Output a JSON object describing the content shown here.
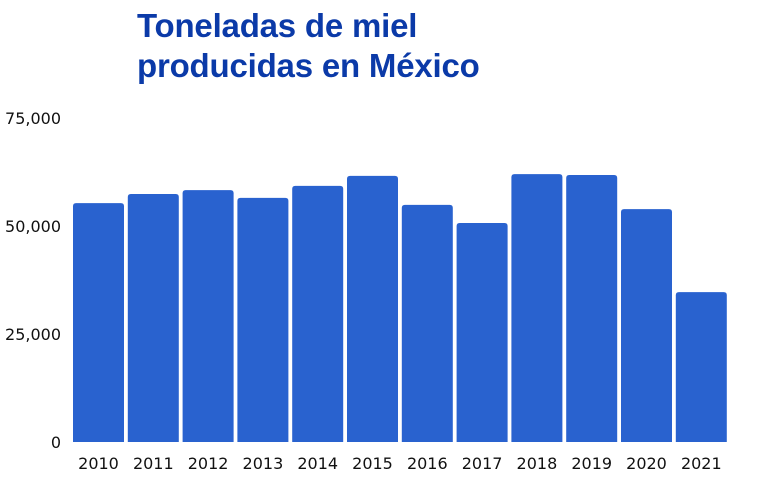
{
  "chart_data": {
    "type": "bar",
    "title_lines": [
      "Toneladas de miel",
      "producidas en México"
    ],
    "title": "Toneladas de miel producidas en México",
    "xlabel": "",
    "ylabel": "",
    "categories": [
      "2010",
      "2011",
      "2012",
      "2013",
      "2014",
      "2015",
      "2016",
      "2017",
      "2018",
      "2019",
      "2020",
      "2021"
    ],
    "values": [
      55300,
      57400,
      58300,
      56500,
      59300,
      61600,
      54900,
      50700,
      62000,
      61800,
      53900,
      34700
    ],
    "ylim": [
      0,
      75000
    ],
    "yticks": [
      0,
      25000,
      50000,
      75000
    ],
    "ytick_labels": [
      "0",
      "25,000",
      "50,000",
      "75,000"
    ],
    "grid": false,
    "legend": "none",
    "bar_color": "#2962cf",
    "title_color": "#0b3aa8"
  }
}
